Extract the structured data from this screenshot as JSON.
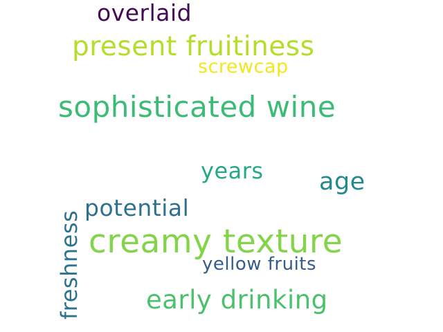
{
  "words": {
    "overlaid": {
      "text": "overlaid",
      "color": "#440a57"
    },
    "present_fruitiness": {
      "text": "present fruitiness",
      "color": "#b5dd2b"
    },
    "screwcap": {
      "text": "screwcap",
      "color": "#f5e51f"
    },
    "sophisticated_wine": {
      "text": "sophisticated wine",
      "color": "#3bbb75"
    },
    "years": {
      "text": "years",
      "color": "#25a884"
    },
    "age": {
      "text": "age",
      "color": "#23898e"
    },
    "potential": {
      "text": "potential",
      "color": "#2d718e"
    },
    "creamy_texture": {
      "text": "creamy texture",
      "color": "#84d44b"
    },
    "yellow_fruits": {
      "text": "yellow fruits",
      "color": "#365c8d"
    },
    "early_drinking": {
      "text": "early drinking",
      "color": "#4ac16d"
    },
    "freshness": {
      "text": "freshness",
      "color": "#2c738e"
    }
  }
}
